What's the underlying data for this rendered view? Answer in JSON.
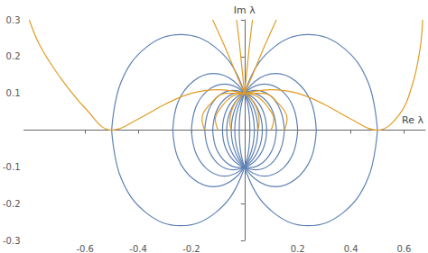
{
  "chart_data": {
    "type": "line",
    "xlabel": "Re λ",
    "ylabel": "Im λ",
    "xlim": [
      -0.83,
      0.68
    ],
    "ylim": [
      -0.3,
      0.3
    ],
    "xticks": [
      -0.6,
      -0.4,
      -0.2,
      0.2,
      0.4,
      0.6
    ],
    "yticks": [
      -0.3,
      -0.2,
      -0.1,
      0.1,
      0.2,
      0.3
    ],
    "grid": false,
    "series": [
      {
        "color": "#5e81b5",
        "x": [
          0.5,
          0.465,
          0.37,
          0.24,
          0.11,
          0.015,
          -0.02,
          0.015,
          0.11,
          0.24,
          0.37,
          0.465,
          0.5
        ],
        "values": [
          0,
          0.13,
          0.225,
          0.26,
          0.225,
          0.13,
          0,
          -0.13,
          -0.225,
          -0.26,
          -0.225,
          -0.13,
          0
        ]
      },
      {
        "color": "#5e81b5",
        "x": [
          -0.5,
          -0.465,
          -0.37,
          -0.24,
          -0.11,
          -0.015,
          0.02,
          -0.015,
          -0.11,
          -0.24,
          -0.37,
          -0.465,
          -0.5
        ],
        "values": [
          0,
          0.13,
          0.225,
          0.26,
          0.225,
          0.13,
          0,
          -0.13,
          -0.225,
          -0.26,
          -0.225,
          -0.13,
          0
        ]
      },
      {
        "color": "#5e81b5",
        "x": [
          0.27,
          0.25,
          0.193,
          0.117,
          0.04,
          -0.016,
          -0.037,
          -0.016,
          0.04,
          0.117,
          0.193,
          0.25,
          0.27
        ],
        "values": [
          0,
          0.077,
          0.133,
          0.154,
          0.133,
          0.077,
          0,
          -0.077,
          -0.133,
          -0.154,
          -0.133,
          -0.077,
          0
        ]
      },
      {
        "color": "#5e81b5",
        "x": [
          -0.27,
          -0.25,
          -0.193,
          -0.117,
          -0.04,
          0.016,
          0.037,
          0.016,
          -0.04,
          -0.117,
          -0.193,
          -0.25,
          -0.27
        ],
        "values": [
          0,
          0.077,
          0.133,
          0.154,
          0.133,
          0.077,
          0,
          -0.077,
          -0.133,
          -0.154,
          -0.133,
          -0.077,
          0
        ]
      },
      {
        "color": "#5e81b5",
        "x": [
          0.2,
          0.183,
          0.138,
          0.075,
          0.013,
          -0.033,
          -0.05,
          -0.033,
          0.013,
          0.075,
          0.138,
          0.183,
          0.2
        ],
        "values": [
          0,
          0.063,
          0.108,
          0.125,
          0.108,
          0.063,
          0,
          -0.063,
          -0.108,
          -0.125,
          -0.108,
          -0.063,
          0
        ]
      },
      {
        "color": "#5e81b5",
        "x": [
          -0.2,
          -0.183,
          -0.138,
          -0.075,
          -0.013,
          0.033,
          0.05,
          0.033,
          -0.013,
          -0.075,
          -0.138,
          -0.183,
          -0.2
        ],
        "values": [
          0,
          0.063,
          0.108,
          0.125,
          0.108,
          0.063,
          0,
          -0.063,
          -0.108,
          -0.125,
          -0.108,
          -0.063,
          0
        ]
      },
      {
        "color": "#5e81b5",
        "x": [
          0.15,
          0.135,
          0.096,
          0.042,
          -0.012,
          -0.052,
          -0.067,
          -0.052,
          -0.012,
          0.042,
          0.096,
          0.135,
          0.15
        ],
        "values": [
          0,
          0.054,
          0.094,
          0.108,
          0.094,
          0.054,
          0,
          -0.054,
          -0.094,
          -0.108,
          -0.094,
          -0.054,
          0
        ]
      },
      {
        "color": "#5e81b5",
        "x": [
          -0.15,
          -0.135,
          -0.096,
          -0.042,
          0.012,
          0.052,
          0.067,
          0.052,
          0.012,
          -0.042,
          -0.096,
          -0.135,
          -0.15
        ],
        "values": [
          0,
          0.054,
          0.094,
          0.108,
          0.094,
          0.054,
          0,
          -0.054,
          -0.094,
          -0.108,
          -0.094,
          -0.054,
          0
        ]
      },
      {
        "color": "#5e81b5",
        "x": [
          0.12,
          0.106,
          0.069,
          0.018,
          -0.033,
          -0.07,
          -0.083,
          -0.07,
          -0.033,
          0.018,
          0.069,
          0.106,
          0.12
        ],
        "values": [
          0,
          0.051,
          0.088,
          0.102,
          0.088,
          0.051,
          0,
          -0.051,
          -0.088,
          -0.102,
          -0.088,
          -0.051,
          0
        ]
      },
      {
        "color": "#5e81b5",
        "x": [
          -0.12,
          -0.106,
          -0.069,
          -0.018,
          0.033,
          0.07,
          0.083,
          0.07,
          0.033,
          -0.018,
          -0.069,
          -0.106,
          -0.12
        ],
        "values": [
          0,
          0.051,
          0.088,
          0.102,
          0.088,
          0.051,
          0,
          -0.051,
          -0.088,
          -0.102,
          -0.088,
          -0.051,
          0
        ]
      },
      {
        "color": "#e19c24",
        "x": [
          0,
          0.01,
          0.02,
          0.03
        ],
        "values": [
          0.1,
          0.17,
          0.24,
          0.3
        ]
      },
      {
        "color": "#e19c24",
        "x": [
          0,
          -0.01,
          -0.02,
          -0.03
        ],
        "values": [
          0.1,
          0.17,
          0.24,
          0.3
        ]
      },
      {
        "color": "#e19c24",
        "x": [
          0,
          0.03,
          0.07,
          0.12
        ],
        "values": [
          0.1,
          0.15,
          0.22,
          0.3
        ]
      },
      {
        "color": "#e19c24",
        "x": [
          0,
          -0.03,
          -0.07,
          -0.12
        ],
        "values": [
          0.1,
          0.15,
          0.22,
          0.3
        ]
      },
      {
        "color": "#e19c24",
        "x": [
          0,
          0.03,
          0.05,
          0.055,
          0.05
        ],
        "values": [
          0.1,
          0.08,
          0.05,
          0.02,
          0
        ]
      },
      {
        "color": "#e19c24",
        "x": [
          0,
          -0.03,
          -0.05,
          -0.055,
          -0.05
        ],
        "values": [
          0.1,
          0.08,
          0.05,
          0.02,
          0
        ]
      },
      {
        "color": "#e19c24",
        "x": [
          0,
          0.05,
          0.09,
          0.11,
          0.1
        ],
        "values": [
          0.1,
          0.09,
          0.06,
          0.03,
          0
        ]
      },
      {
        "color": "#e19c24",
        "x": [
          0,
          -0.05,
          -0.09,
          -0.11,
          -0.1
        ],
        "values": [
          0.1,
          0.09,
          0.06,
          0.03,
          0
        ]
      },
      {
        "color": "#e19c24",
        "x": [
          0,
          0.07,
          0.13,
          0.16,
          0.15
        ],
        "values": [
          0.1,
          0.1,
          0.07,
          0.03,
          0
        ]
      },
      {
        "color": "#e19c24",
        "x": [
          0,
          -0.07,
          -0.13,
          -0.16,
          -0.15
        ],
        "values": [
          0.1,
          0.1,
          0.07,
          0.03,
          0
        ]
      },
      {
        "color": "#e19c24",
        "x": [
          0,
          0.1,
          0.2,
          0.3,
          0.4,
          0.5,
          0.58,
          0.63,
          0.66,
          0.67
        ],
        "values": [
          0.1,
          0.11,
          0.1,
          0.07,
          0.03,
          0,
          0.04,
          0.12,
          0.22,
          0.3
        ]
      },
      {
        "color": "#e19c24",
        "x": [
          0,
          -0.1,
          -0.2,
          -0.3,
          -0.4,
          -0.5,
          -0.6,
          -0.7,
          -0.77,
          -0.81
        ],
        "values": [
          0.1,
          0.11,
          0.1,
          0.07,
          0.03,
          0,
          0.06,
          0.15,
          0.23,
          0.3
        ]
      }
    ]
  }
}
